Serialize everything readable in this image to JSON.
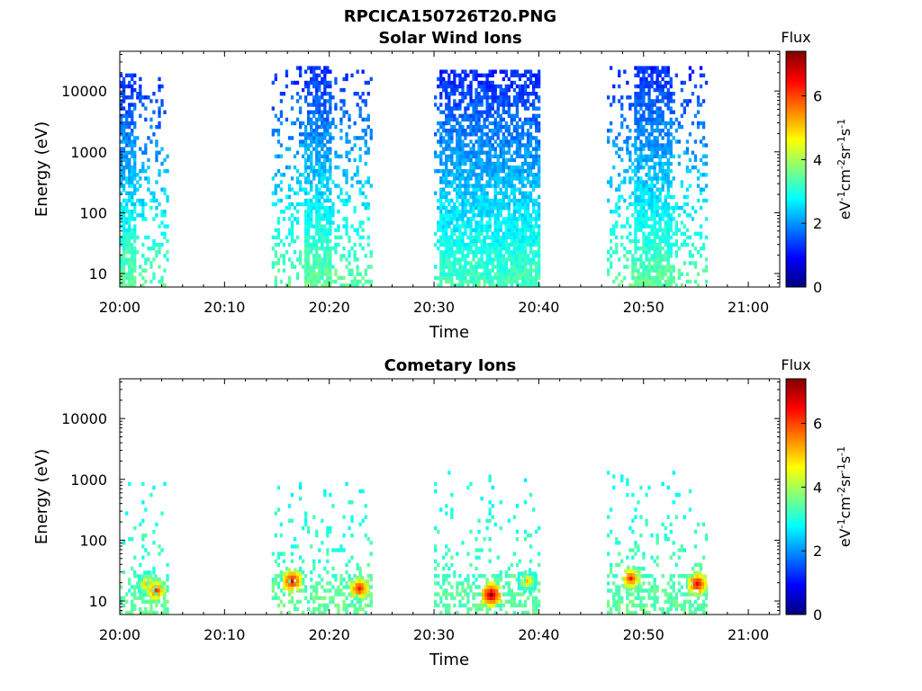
{
  "figure_title": "RPCICA150726T20.PNG",
  "colorbar": {
    "label": "Flux",
    "unit_base": "eV",
    "unit_exps": [
      "-1",
      "-2",
      "-1",
      "-1"
    ],
    "unit_parts": [
      "cm",
      "sr",
      "s"
    ],
    "range": [
      0,
      7.4
    ],
    "ticks": [
      "0",
      "2",
      "4",
      "6"
    ],
    "colormap": "jet"
  },
  "chart_data": [
    {
      "type": "heatmap",
      "title": "Solar Wind Ions",
      "xlabel": "Time",
      "ylabel": "Energy (eV)",
      "yscale": "log",
      "ylim": [
        6,
        45000
      ],
      "xlim": [
        "20:00",
        "21:03"
      ],
      "xticks": [
        "20:00",
        "20:10",
        "20:20",
        "20:30",
        "20:40",
        "20:50",
        "21:00"
      ],
      "yticks": [
        "10",
        "100",
        "1000",
        "10000"
      ],
      "colorbar_label": "Flux",
      "bursts": [
        {
          "start": "20:00",
          "end": "20:04:30",
          "core_end": "20:01:30",
          "emin": 6,
          "emax": 18000,
          "flux_low": 3.5,
          "flux_high": 1.2
        },
        {
          "start": "20:14:30",
          "end": "20:24",
          "core_start": "20:17:30",
          "core_end": "20:20",
          "emin": 6,
          "emax": 25000,
          "flux_low": 3.5,
          "flux_high": 1.2
        },
        {
          "start": "20:30",
          "end": "20:40",
          "core_start": "20:30:30",
          "core_end": "20:40",
          "emin": 6,
          "emax": 20000,
          "flux_low": 3.3,
          "flux_high": 1.2
        },
        {
          "start": "20:46:30",
          "end": "20:56",
          "core_start": "20:49",
          "core_end": "20:52:30",
          "emin": 6,
          "emax": 25000,
          "flux_low": 3.5,
          "flux_high": 1.2
        }
      ]
    },
    {
      "type": "heatmap",
      "title": "Cometary Ions",
      "xlabel": "Time",
      "ylabel": "Energy (eV)",
      "yscale": "log",
      "ylim": [
        6,
        45000
      ],
      "xlim": [
        "20:00",
        "21:03"
      ],
      "xticks": [
        "20:00",
        "20:10",
        "20:20",
        "20:30",
        "20:40",
        "20:50",
        "21:00"
      ],
      "yticks": [
        "10",
        "100",
        "1000",
        "10000"
      ],
      "colorbar_label": "Flux",
      "bursts": [
        {
          "start": "20:00",
          "end": "20:04:30",
          "emin": 6,
          "emax": 900,
          "flux_low": 3.5,
          "flux_high": 2.8
        },
        {
          "start": "20:14:30",
          "end": "20:24",
          "emin": 6,
          "emax": 900,
          "flux_low": 3.5,
          "flux_high": 2.8
        },
        {
          "start": "20:30",
          "end": "20:40",
          "emin": 6,
          "emax": 1300,
          "flux_low": 3.5,
          "flux_high": 2.8
        },
        {
          "start": "20:46:30",
          "end": "20:56",
          "emin": 6,
          "emax": 1400,
          "flux_low": 3.5,
          "flux_high": 2.8
        }
      ],
      "hotspots": [
        {
          "time": "20:02:30",
          "energy": 18,
          "flux": 5.5
        },
        {
          "time": "20:03:20",
          "energy": 14,
          "flux": 6.3
        },
        {
          "time": "20:16:20",
          "energy": 20,
          "flux": 6.8
        },
        {
          "time": "20:22:45",
          "energy": 15,
          "flux": 6.5
        },
        {
          "time": "20:35:20",
          "energy": 12,
          "flux": 7.2
        },
        {
          "time": "20:38:45",
          "energy": 20,
          "flux": 5.2
        },
        {
          "time": "20:48:40",
          "energy": 22,
          "flux": 6.3
        },
        {
          "time": "20:55:00",
          "energy": 18,
          "flux": 6.8
        }
      ]
    }
  ]
}
